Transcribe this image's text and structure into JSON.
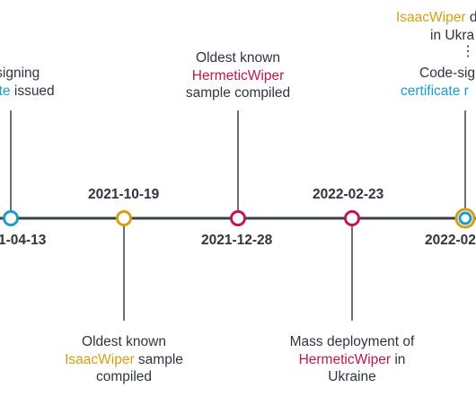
{
  "colors": {
    "line": "#3a3f4b",
    "cyan": "#1b9cc9",
    "orange": "#d99d12",
    "crimson": "#c0174d"
  },
  "events": {
    "e1": {
      "date": "1-04-13",
      "label_line1": "-signing",
      "label_accent": "ate",
      "label_tail": " issued"
    },
    "e2": {
      "date": "2021-10-19",
      "label_line1": "Oldest known",
      "label_accent": "IsaacWiper",
      "label_tail": " sample",
      "label_line3": "compiled"
    },
    "e3": {
      "date": "2021-12-28",
      "label_line1": "Oldest known",
      "label_accent": "HermeticWiper",
      "label_line3": "sample compiled"
    },
    "e4": {
      "date": "2022-02-23",
      "label_line1": "Mass deployment of",
      "label_accent": "HermeticWiper",
      "label_tail": " in",
      "label_line3": "Ukraine"
    },
    "e5": {
      "date": "2022-02",
      "top_accent": "IsaacWiper",
      "top_tail": " d",
      "top_line2": "in Ukra",
      "dots": "⋮",
      "label_line1": "Code-sig",
      "label_accent": "certificate r"
    }
  }
}
